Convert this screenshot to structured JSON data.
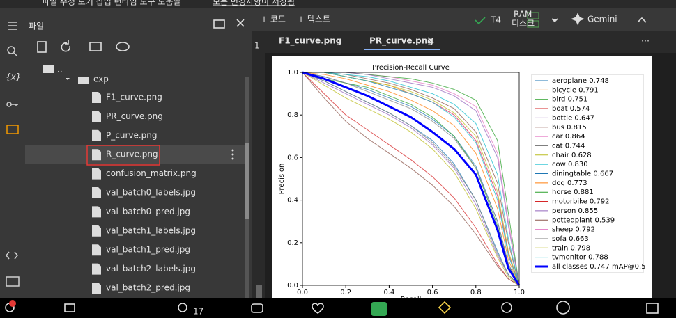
{
  "menu": {
    "items": [
      "파일",
      "수정",
      "보기",
      "삽입",
      "런타임",
      "도구",
      "도움말"
    ],
    "saved": "모든 변경사항이 저장됨"
  },
  "toolbar": {
    "add_code": "+ 코드",
    "add_text": "+ 텍스트",
    "runtime": "T4",
    "ram": "RAM",
    "disk": "디스크",
    "gemini": "Gemini"
  },
  "sidebar": {
    "title": "파일",
    "parent": "..",
    "folder": "exp",
    "files": [
      "F1_curve.png",
      "PR_curve.png",
      "P_curve.png",
      "R_curve.png",
      "confusion_matrix.png",
      "val_batch0_labels.jpg",
      "val_batch0_pred.jpg",
      "val_batch1_labels.jpg",
      "val_batch1_pred.jpg",
      "val_batch2_labels.jpg",
      "val_batch2_pred.jpg"
    ]
  },
  "editor": {
    "line_number": "1",
    "tabs": [
      "F1_curve.png",
      "PR_curve.png"
    ]
  },
  "taskbar": {
    "participants": "17"
  },
  "chart_data": {
    "type": "line",
    "title": "Precision-Recall Curve",
    "xlabel": "Recall",
    "ylabel": "Precision",
    "x": [
      0,
      0.1,
      0.2,
      0.3,
      0.4,
      0.5,
      0.6,
      0.7,
      0.8,
      0.9,
      0.95,
      1.0
    ],
    "xlim": [
      0,
      1
    ],
    "ylim": [
      0,
      1
    ],
    "xticks": [
      {
        "value": 0,
        "label": "0.0"
      },
      0.2,
      0.4,
      0.6,
      0.8,
      {
        "value": 1,
        "label": "1.0"
      }
    ],
    "yticks": [
      {
        "value": 0,
        "label": "0.0"
      },
      0.2,
      0.4,
      0.6,
      0.8,
      {
        "value": 1,
        "label": "1.0"
      }
    ],
    "legend": "right",
    "series": [
      {
        "name": "aeroplane 0.748",
        "color": "#1f77b4",
        "values": [
          1,
          0.98,
          0.95,
          0.92,
          0.88,
          0.84,
          0.78,
          0.7,
          0.56,
          0.3,
          0.1,
          0
        ]
      },
      {
        "name": "bicycle 0.791",
        "color": "#ff7f0e",
        "values": [
          1,
          1,
          0.98,
          0.96,
          0.94,
          0.9,
          0.86,
          0.8,
          0.68,
          0.42,
          0.15,
          0
        ]
      },
      {
        "name": "bird 0.751",
        "color": "#2ca02c",
        "values": [
          1,
          0.97,
          0.95,
          0.93,
          0.89,
          0.85,
          0.79,
          0.7,
          0.55,
          0.28,
          0.09,
          0
        ]
      },
      {
        "name": "boat 0.574",
        "color": "#d62728",
        "values": [
          1,
          0.9,
          0.8,
          0.73,
          0.66,
          0.59,
          0.51,
          0.41,
          0.27,
          0.1,
          0.03,
          0
        ]
      },
      {
        "name": "bottle 0.647",
        "color": "#9467bd",
        "values": [
          1,
          0.95,
          0.9,
          0.85,
          0.8,
          0.74,
          0.66,
          0.55,
          0.38,
          0.14,
          0.05,
          0
        ]
      },
      {
        "name": "bus 0.815",
        "color": "#8c564b",
        "values": [
          1,
          1,
          0.99,
          0.97,
          0.95,
          0.92,
          0.88,
          0.83,
          0.72,
          0.48,
          0.2,
          0
        ]
      },
      {
        "name": "car 0.864",
        "color": "#e377c2",
        "values": [
          1,
          1,
          1,
          0.99,
          0.98,
          0.96,
          0.94,
          0.9,
          0.84,
          0.62,
          0.3,
          0
        ]
      },
      {
        "name": "cat 0.744",
        "color": "#7f7f7f",
        "values": [
          1,
          0.98,
          0.95,
          0.91,
          0.87,
          0.83,
          0.77,
          0.69,
          0.55,
          0.3,
          0.1,
          0
        ]
      },
      {
        "name": "chair 0.628",
        "color": "#bcbd22",
        "values": [
          1,
          0.94,
          0.88,
          0.83,
          0.78,
          0.72,
          0.64,
          0.53,
          0.36,
          0.13,
          0.04,
          0
        ]
      },
      {
        "name": "cow 0.830",
        "color": "#17becf",
        "values": [
          1,
          1,
          0.99,
          0.98,
          0.96,
          0.93,
          0.9,
          0.85,
          0.76,
          0.52,
          0.22,
          0
        ]
      },
      {
        "name": "diningtable 0.667",
        "color": "#1f77b4",
        "values": [
          1,
          0.96,
          0.91,
          0.86,
          0.81,
          0.75,
          0.68,
          0.57,
          0.4,
          0.16,
          0.05,
          0
        ]
      },
      {
        "name": "dog 0.773",
        "color": "#ff7f0e",
        "values": [
          1,
          0.99,
          0.97,
          0.94,
          0.91,
          0.87,
          0.82,
          0.75,
          0.62,
          0.36,
          0.12,
          0
        ]
      },
      {
        "name": "horse 0.881",
        "color": "#2ca02c",
        "values": [
          1,
          1,
          1,
          0.99,
          0.98,
          0.97,
          0.95,
          0.92,
          0.87,
          0.68,
          0.34,
          0
        ]
      },
      {
        "name": "motorbike 0.792",
        "color": "#d62728",
        "values": [
          1,
          1,
          0.98,
          0.96,
          0.93,
          0.9,
          0.86,
          0.8,
          0.68,
          0.42,
          0.15,
          0
        ]
      },
      {
        "name": "person 0.855",
        "color": "#9467bd",
        "values": [
          1,
          1,
          1,
          0.99,
          0.97,
          0.95,
          0.93,
          0.89,
          0.82,
          0.6,
          0.28,
          0
        ]
      },
      {
        "name": "pottedplant 0.539",
        "color": "#8c564b",
        "values": [
          1,
          0.88,
          0.77,
          0.69,
          0.62,
          0.55,
          0.47,
          0.37,
          0.24,
          0.09,
          0.03,
          0
        ]
      },
      {
        "name": "sheep 0.792",
        "color": "#e377c2",
        "values": [
          1,
          1,
          0.98,
          0.96,
          0.93,
          0.9,
          0.86,
          0.8,
          0.68,
          0.42,
          0.15,
          0
        ]
      },
      {
        "name": "sofa 0.663",
        "color": "#7f7f7f",
        "values": [
          1,
          0.96,
          0.91,
          0.86,
          0.81,
          0.75,
          0.67,
          0.56,
          0.4,
          0.15,
          0.05,
          0
        ]
      },
      {
        "name": "train 0.798",
        "color": "#bcbd22",
        "values": [
          1,
          1,
          0.98,
          0.96,
          0.94,
          0.91,
          0.87,
          0.81,
          0.7,
          0.44,
          0.16,
          0
        ]
      },
      {
        "name": "tvmonitor 0.788",
        "color": "#17becf",
        "values": [
          1,
          1,
          0.98,
          0.96,
          0.93,
          0.9,
          0.86,
          0.79,
          0.67,
          0.4,
          0.14,
          0
        ]
      },
      {
        "name": "all classes 0.747 mAP@0.5",
        "color": "#0000ff",
        "values": [
          1,
          0.97,
          0.93,
          0.89,
          0.84,
          0.79,
          0.72,
          0.64,
          0.52,
          0.26,
          0.08,
          0
        ],
        "bold": true
      }
    ]
  }
}
